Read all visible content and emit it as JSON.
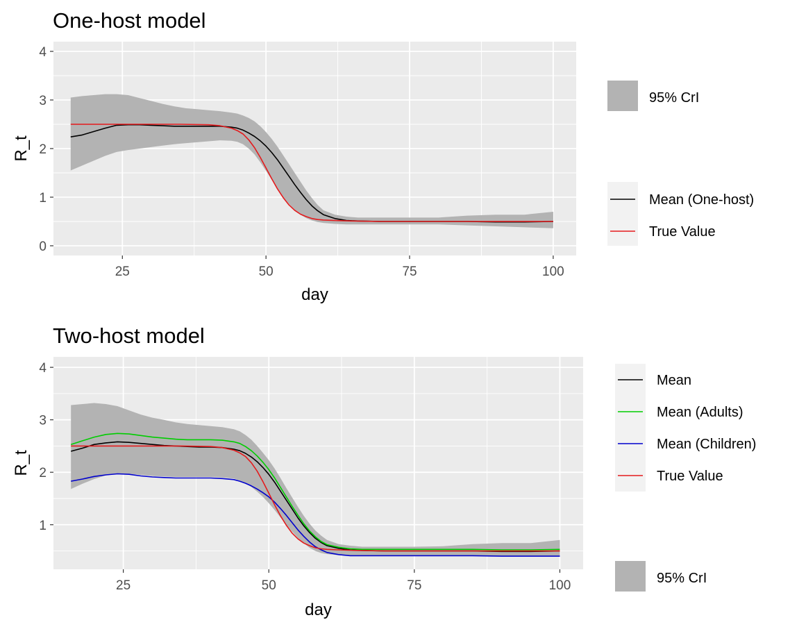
{
  "colors": {
    "panel": "#ebebeb",
    "grid": "#ffffff",
    "band": "#b3b3b3",
    "mean": "#000000",
    "adults": "#00cd00",
    "children": "#0000cd",
    "truth": "#e41a1c"
  },
  "chart_data": [
    {
      "type": "line",
      "title": "One-host model",
      "xlabel": "day",
      "ylabel": "R_t",
      "xlim": [
        13,
        104
      ],
      "ylim": [
        -0.2,
        4.2
      ],
      "xticks": [
        "25",
        "50",
        "75",
        "100"
      ],
      "yticks": [
        "0",
        "1",
        "2",
        "3",
        "4"
      ],
      "grid": true,
      "legend_position": "right",
      "band": {
        "name": "95% CrI",
        "x": [
          16,
          18,
          20,
          22,
          24,
          26,
          28,
          30,
          32,
          34,
          36,
          38,
          40,
          42,
          44,
          45,
          46,
          47,
          48,
          49,
          50,
          51,
          52,
          53,
          54,
          55,
          56,
          57,
          58,
          59,
          60,
          62,
          64,
          66,
          70,
          75,
          80,
          85,
          90,
          95,
          100
        ],
        "lower": [
          1.55,
          1.65,
          1.75,
          1.85,
          1.93,
          1.97,
          2.0,
          2.03,
          2.06,
          2.09,
          2.11,
          2.13,
          2.15,
          2.17,
          2.16,
          2.14,
          2.09,
          2.0,
          1.88,
          1.72,
          1.54,
          1.36,
          1.18,
          1.0,
          0.86,
          0.74,
          0.64,
          0.57,
          0.52,
          0.49,
          0.47,
          0.45,
          0.44,
          0.44,
          0.44,
          0.44,
          0.44,
          0.42,
          0.4,
          0.38,
          0.36
        ],
        "upper": [
          3.05,
          3.08,
          3.1,
          3.12,
          3.12,
          3.1,
          3.04,
          2.98,
          2.92,
          2.87,
          2.83,
          2.81,
          2.79,
          2.77,
          2.74,
          2.72,
          2.68,
          2.63,
          2.56,
          2.46,
          2.34,
          2.2,
          2.04,
          1.86,
          1.68,
          1.5,
          1.32,
          1.14,
          0.98,
          0.84,
          0.73,
          0.64,
          0.6,
          0.58,
          0.58,
          0.58,
          0.58,
          0.62,
          0.64,
          0.64,
          0.7
        ]
      },
      "series": [
        {
          "name": "Mean (One-host)",
          "color": "#000000",
          "x": [
            16,
            18,
            20,
            22,
            24,
            26,
            28,
            30,
            32,
            34,
            36,
            38,
            40,
            42,
            44,
            45,
            46,
            47,
            48,
            49,
            50,
            51,
            52,
            53,
            54,
            55,
            56,
            57,
            58,
            59,
            60,
            62,
            64,
            66,
            70,
            75,
            80,
            85,
            90,
            95,
            100
          ],
          "y": [
            2.24,
            2.28,
            2.35,
            2.42,
            2.48,
            2.49,
            2.49,
            2.48,
            2.47,
            2.46,
            2.46,
            2.46,
            2.46,
            2.46,
            2.44,
            2.42,
            2.38,
            2.32,
            2.25,
            2.16,
            2.05,
            1.92,
            1.77,
            1.6,
            1.43,
            1.26,
            1.1,
            0.95,
            0.82,
            0.72,
            0.64,
            0.56,
            0.52,
            0.51,
            0.5,
            0.5,
            0.5,
            0.5,
            0.49,
            0.49,
            0.5
          ]
        },
        {
          "name": "True Value",
          "color": "#e41a1c",
          "x": [
            16,
            20,
            25,
            30,
            35,
            40,
            42,
            44,
            45,
            46,
            47,
            48,
            49,
            50,
            51,
            52,
            53,
            54,
            55,
            56,
            57,
            58,
            59,
            60,
            62,
            65,
            70,
            80,
            90,
            100
          ],
          "y": [
            2.5,
            2.5,
            2.5,
            2.5,
            2.5,
            2.49,
            2.47,
            2.42,
            2.37,
            2.3,
            2.18,
            2.02,
            1.82,
            1.6,
            1.38,
            1.17,
            0.99,
            0.84,
            0.73,
            0.65,
            0.6,
            0.56,
            0.54,
            0.53,
            0.52,
            0.51,
            0.5,
            0.5,
            0.5,
            0.5
          ]
        }
      ]
    },
    {
      "type": "line",
      "title": "Two-host model",
      "xlabel": "day",
      "ylabel": "R_t",
      "xlim": [
        13,
        104
      ],
      "ylim": [
        0.15,
        4.2
      ],
      "xticks": [
        "25",
        "50",
        "75",
        "100"
      ],
      "yticks": [
        "1",
        "2",
        "3",
        "4"
      ],
      "grid": true,
      "legend_position": "right",
      "band": {
        "name": "95% CrI",
        "x": [
          16,
          18,
          20,
          22,
          24,
          26,
          28,
          30,
          32,
          34,
          36,
          38,
          40,
          42,
          44,
          45,
          46,
          47,
          48,
          49,
          50,
          51,
          52,
          53,
          54,
          55,
          56,
          57,
          58,
          59,
          60,
          62,
          64,
          66,
          70,
          75,
          80,
          85,
          90,
          95,
          100
        ],
        "lower": [
          1.68,
          1.78,
          1.87,
          1.94,
          1.97,
          1.97,
          1.95,
          1.93,
          1.92,
          1.91,
          1.91,
          1.91,
          1.91,
          1.9,
          1.88,
          1.84,
          1.79,
          1.72,
          1.63,
          1.53,
          1.41,
          1.28,
          1.14,
          1.0,
          0.87,
          0.75,
          0.65,
          0.56,
          0.5,
          0.46,
          0.44,
          0.42,
          0.41,
          0.41,
          0.41,
          0.41,
          0.41,
          0.41,
          0.4,
          0.4,
          0.4
        ],
        "upper": [
          3.28,
          3.3,
          3.32,
          3.3,
          3.26,
          3.18,
          3.1,
          3.04,
          3.0,
          2.95,
          2.92,
          2.9,
          2.88,
          2.86,
          2.82,
          2.78,
          2.71,
          2.62,
          2.5,
          2.37,
          2.23,
          2.07,
          1.89,
          1.7,
          1.52,
          1.34,
          1.17,
          1.02,
          0.89,
          0.79,
          0.71,
          0.63,
          0.6,
          0.58,
          0.58,
          0.58,
          0.59,
          0.63,
          0.65,
          0.65,
          0.71
        ]
      },
      "series": [
        {
          "name": "Mean",
          "color": "#000000",
          "x": [
            16,
            18,
            20,
            22,
            24,
            26,
            28,
            30,
            32,
            34,
            36,
            38,
            40,
            42,
            44,
            45,
            46,
            47,
            48,
            49,
            50,
            51,
            52,
            53,
            54,
            55,
            56,
            57,
            58,
            59,
            60,
            62,
            64,
            66,
            70,
            75,
            80,
            85,
            90,
            95,
            100
          ],
          "y": [
            2.4,
            2.46,
            2.53,
            2.56,
            2.58,
            2.57,
            2.55,
            2.53,
            2.51,
            2.5,
            2.49,
            2.48,
            2.48,
            2.47,
            2.44,
            2.41,
            2.36,
            2.29,
            2.2,
            2.09,
            1.96,
            1.81,
            1.64,
            1.47,
            1.3,
            1.13,
            0.98,
            0.85,
            0.74,
            0.66,
            0.6,
            0.55,
            0.52,
            0.51,
            0.5,
            0.5,
            0.5,
            0.5,
            0.49,
            0.49,
            0.5
          ]
        },
        {
          "name": "Mean (Adults)",
          "color": "#00cd00",
          "x": [
            16,
            18,
            20,
            22,
            24,
            26,
            28,
            30,
            32,
            34,
            36,
            38,
            40,
            42,
            44,
            45,
            46,
            47,
            48,
            49,
            50,
            51,
            52,
            53,
            54,
            55,
            56,
            57,
            58,
            59,
            60,
            62,
            64,
            66,
            70,
            75,
            80,
            85,
            90,
            95,
            100
          ],
          "y": [
            2.53,
            2.6,
            2.67,
            2.72,
            2.74,
            2.73,
            2.7,
            2.67,
            2.65,
            2.63,
            2.62,
            2.62,
            2.62,
            2.61,
            2.58,
            2.55,
            2.49,
            2.41,
            2.31,
            2.19,
            2.05,
            1.89,
            1.71,
            1.53,
            1.35,
            1.18,
            1.02,
            0.88,
            0.77,
            0.68,
            0.62,
            0.57,
            0.54,
            0.53,
            0.53,
            0.53,
            0.53,
            0.53,
            0.52,
            0.52,
            0.53
          ]
        },
        {
          "name": "Mean (Children)",
          "color": "#0000cd",
          "x": [
            16,
            18,
            20,
            22,
            24,
            26,
            28,
            30,
            32,
            34,
            36,
            38,
            40,
            42,
            44,
            45,
            46,
            47,
            48,
            49,
            50,
            51,
            52,
            53,
            54,
            55,
            56,
            57,
            58,
            59,
            60,
            62,
            64,
            66,
            70,
            75,
            80,
            85,
            90,
            95,
            100
          ],
          "y": [
            1.83,
            1.87,
            1.92,
            1.95,
            1.97,
            1.96,
            1.93,
            1.91,
            1.9,
            1.89,
            1.89,
            1.89,
            1.89,
            1.88,
            1.86,
            1.83,
            1.79,
            1.74,
            1.68,
            1.61,
            1.53,
            1.43,
            1.31,
            1.18,
            1.04,
            0.9,
            0.78,
            0.67,
            0.58,
            0.52,
            0.47,
            0.43,
            0.41,
            0.41,
            0.41,
            0.41,
            0.41,
            0.41,
            0.4,
            0.4,
            0.4
          ]
        },
        {
          "name": "True Value",
          "color": "#e41a1c",
          "x": [
            16,
            20,
            25,
            30,
            35,
            40,
            42,
            44,
            45,
            46,
            47,
            48,
            49,
            50,
            51,
            52,
            53,
            54,
            55,
            56,
            57,
            58,
            59,
            60,
            62,
            65,
            70,
            80,
            90,
            100
          ],
          "y": [
            2.5,
            2.5,
            2.5,
            2.5,
            2.5,
            2.49,
            2.47,
            2.42,
            2.37,
            2.3,
            2.18,
            2.02,
            1.82,
            1.6,
            1.38,
            1.17,
            0.99,
            0.84,
            0.73,
            0.65,
            0.6,
            0.56,
            0.54,
            0.53,
            0.52,
            0.51,
            0.5,
            0.5,
            0.5,
            0.5
          ]
        }
      ]
    }
  ]
}
